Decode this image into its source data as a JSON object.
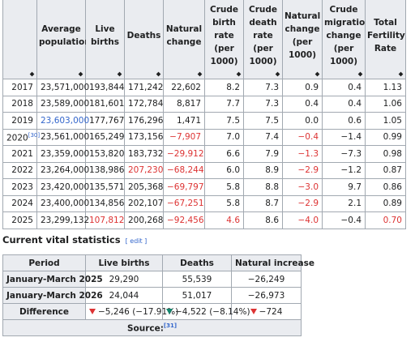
{
  "table": {
    "headers": [
      "Average population",
      "Live births",
      "Deaths",
      "Natural change",
      "Crude birth rate (per 1000)",
      "Crude death rate (per 1000)",
      "Natural change (per 1000)",
      "Crude migration change (per 1000)",
      "Total Fertility Rate"
    ],
    "rows": [
      {
        "year": "2017",
        "cells": [
          "23,571,000",
          "193,844",
          "171,242",
          "22,602",
          "8.2",
          "7.3",
          "0.9",
          "0.4",
          "1.13"
        ]
      },
      {
        "year": "2018",
        "cells": [
          "23,589,000",
          "181,601",
          "172,784",
          "8,817",
          "7.7",
          "7.3",
          "0.4",
          "0.4",
          "1.06"
        ]
      },
      {
        "year": "2019",
        "cells": [
          "23,603,000",
          "177,767",
          "176,296",
          "1,471",
          "7.5",
          "7.5",
          "0.0",
          "0.6",
          "1.05"
        ]
      },
      {
        "year": "2020",
        "ref": "[30]",
        "cells": [
          "23,561,000",
          "165,249",
          "173,156",
          "−7,907",
          "7.0",
          "7.4",
          "−0.4",
          "−1.4",
          "0.99"
        ]
      },
      {
        "year": "2021",
        "cells": [
          "23,359,000",
          "153,820",
          "183,732",
          "−29,912",
          "6.6",
          "7.9",
          "−1.3",
          "−7.3",
          "0.98"
        ]
      },
      {
        "year": "2022",
        "cells": [
          "23,264,000",
          "138,986",
          "207,230",
          "−68,244",
          "6.0",
          "8.9",
          "−2.9",
          "−1.2",
          "0.87"
        ]
      },
      {
        "year": "2023",
        "cells": [
          "23,420,000",
          "135,571",
          "205,368",
          "−69,797",
          "5.8",
          "8.8",
          "−3.0",
          "9.7",
          "0.86"
        ]
      },
      {
        "year": "2024",
        "cells": [
          "23,400,000",
          "134,856",
          "202,107",
          "−67,251",
          "5.8",
          "8.7",
          "−2.9",
          "2.1",
          "0.89"
        ]
      },
      {
        "year": "2025",
        "cells": [
          "23,299,132",
          "107,812",
          "200,268",
          "−92,456",
          "4.6",
          "8.6",
          "−4.0",
          "−0.4",
          "0.70"
        ]
      }
    ]
  },
  "section": {
    "title": "Current vital statistics",
    "edit": "edit"
  },
  "current": {
    "headers": [
      "Period",
      "Live births",
      "Deaths",
      "Natural increase"
    ],
    "rows": [
      [
        "January-March 2025",
        "29,290",
        "55,539",
        "−26,249"
      ],
      [
        "January-March 2026",
        "24,044",
        "51,017",
        "−26,973"
      ],
      [
        "Difference",
        "−5,246 (−17.91%)",
        "−4,522 (−8.14%)",
        "−724"
      ]
    ],
    "source": "Source:",
    "source_ref": "[31]"
  }
}
